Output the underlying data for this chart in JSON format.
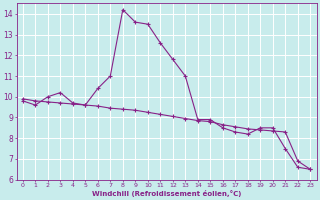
{
  "xlabel": "Windchill (Refroidissement éolien,°C)",
  "xlim": [
    -0.5,
    23.5
  ],
  "ylim": [
    6,
    14.5
  ],
  "yticks": [
    6,
    7,
    8,
    9,
    10,
    11,
    12,
    13,
    14
  ],
  "xticks": [
    0,
    1,
    2,
    3,
    4,
    5,
    6,
    7,
    8,
    9,
    10,
    11,
    12,
    13,
    14,
    15,
    16,
    17,
    18,
    19,
    20,
    21,
    22,
    23
  ],
  "bg_color": "#c8ecec",
  "grid_color": "#ffffff",
  "line_color": "#882288",
  "series1_x": [
    0,
    1,
    2,
    3,
    4,
    5,
    6,
    7,
    8,
    9,
    10,
    11,
    12,
    13,
    14,
    15,
    16,
    17,
    18,
    19,
    20,
    21,
    22,
    23
  ],
  "series1_y": [
    9.8,
    9.6,
    10.0,
    10.2,
    9.7,
    9.6,
    10.4,
    11.0,
    14.2,
    13.6,
    13.5,
    12.6,
    11.8,
    11.0,
    8.9,
    8.9,
    8.5,
    8.3,
    8.2,
    8.5,
    8.5,
    7.5,
    6.6,
    6.5
  ],
  "series2_x": [
    0,
    1,
    2,
    3,
    4,
    5,
    6,
    7,
    8,
    9,
    10,
    11,
    12,
    13,
    14,
    15,
    16,
    17,
    18,
    19,
    20,
    21,
    22,
    23
  ],
  "series2_y": [
    9.9,
    9.8,
    9.75,
    9.7,
    9.65,
    9.6,
    9.55,
    9.45,
    9.4,
    9.35,
    9.25,
    9.15,
    9.05,
    8.95,
    8.85,
    8.8,
    8.65,
    8.55,
    8.45,
    8.4,
    8.35,
    8.3,
    6.9,
    6.5
  ]
}
